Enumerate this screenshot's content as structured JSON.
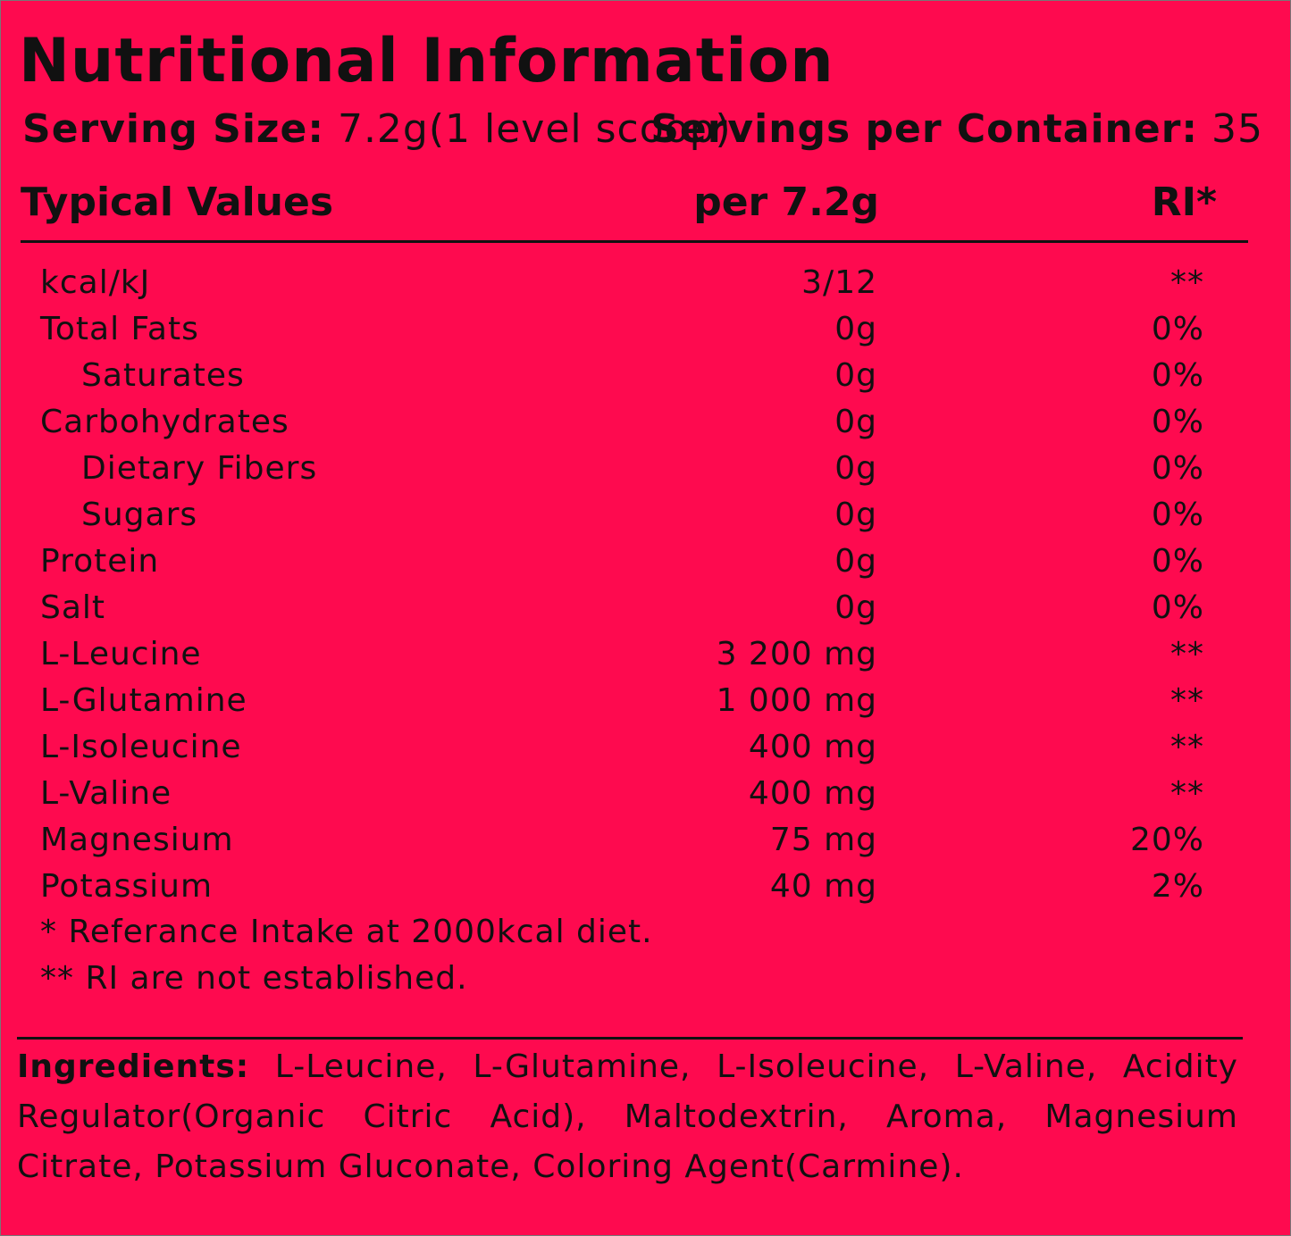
{
  "title": "Nutritional Information",
  "serving": {
    "size_label": "Serving Size:",
    "size_value": "7.2g(1 level scoop)",
    "servings_label": "Servings per Container:",
    "servings_value": "35"
  },
  "table": {
    "header": [
      "Typical Values",
      "per 7.2g",
      "RI*"
    ],
    "rows": [
      {
        "cells": [
          "kcal/kJ",
          "3/12",
          "**"
        ]
      },
      {
        "cells": [
          "Total Fats",
          "0g",
          "0%"
        ],
        "subrows": [
          {
            "cells": [
              "Saturates",
              "0g",
              "0%"
            ]
          }
        ]
      },
      {
        "cells": [
          "Carbohydrates",
          "0g",
          "0%"
        ],
        "subrows": [
          {
            "cells": [
              "Dietary Fibers",
              "0g",
              "0%"
            ]
          },
          {
            "cells": [
              "Sugars",
              "0g",
              "0%"
            ]
          }
        ]
      },
      {
        "cells": [
          "Protein",
          "0g",
          "0%"
        ]
      },
      {
        "cells": [
          "Salt",
          "0g",
          "0%"
        ]
      },
      {
        "cells": [
          "L-Leucine",
          "3 200 mg",
          "**"
        ]
      },
      {
        "cells": [
          "L-Glutamine",
          "1 000 mg",
          "**"
        ]
      },
      {
        "cells": [
          "L-Isoleucine",
          "400 mg",
          "**"
        ]
      },
      {
        "cells": [
          "L-Valine",
          "400 mg",
          "**"
        ]
      },
      {
        "cells": [
          "Magnesium",
          "75 mg",
          "20%"
        ]
      },
      {
        "cells": [
          "Potassium",
          "40 mg",
          "2%"
        ]
      }
    ]
  },
  "footnotes": [
    "* Referance Intake at 2000kcal diet.",
    "** RI are not established."
  ],
  "ingredients": {
    "label": "Ingredients:",
    "text": "L-Leucine, L-Glutamine, L-Isoleucine, L-Valine, Acidity Regulator(Organic Citric Acid), Maltodextrin, Aroma, Magnesium Citrate, Potassium Gluconate, Coloring Agent(Carmine)."
  }
}
